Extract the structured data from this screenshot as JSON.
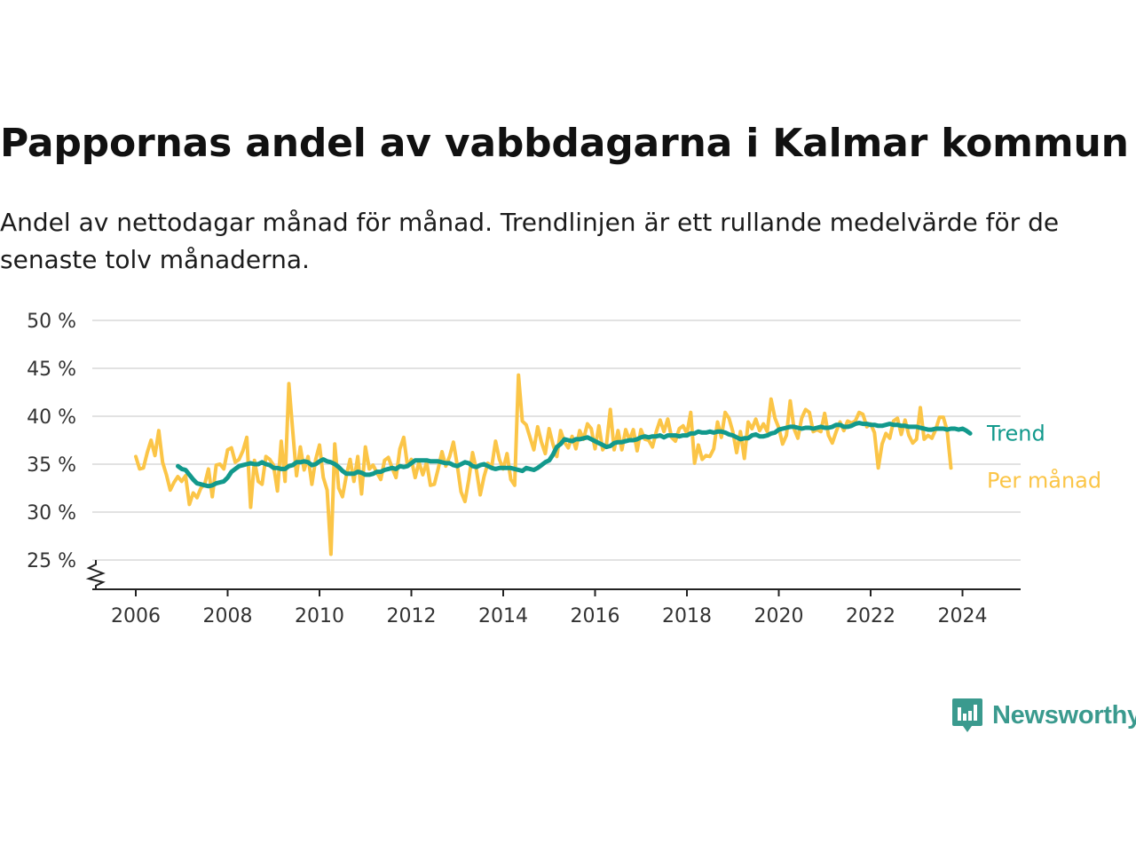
{
  "title": "Pappornas andel av vabbdagarna i Kalmar kommun",
  "subtitle": "Andel av nettodagar månad för månad. Trendlinjen är ett rullande medelvärde för de senaste tolv månaderna.",
  "brand": {
    "name": "Newsworthy",
    "color": "#3a9a8e"
  },
  "colors": {
    "trend": "#12998c",
    "monthly": "#fbc547",
    "grid": "#d9d9d9",
    "axis": "#222222"
  },
  "chart_data": {
    "type": "line",
    "title": "Pappornas andel av vabbdagarna i Kalmar kommun",
    "subtitle": "Andel av nettodagar månad för månad. Trendlinjen är ett rullande medelvärde för de senaste tolv månaderna.",
    "xlabel": "",
    "ylabel": "",
    "xlim": [
      2005.6,
      2025.25
    ],
    "ylim": [
      22,
      50
    ],
    "y_axis_break": true,
    "grid": "horizontal",
    "x_ticks": [
      2006,
      2008,
      2010,
      2012,
      2014,
      2016,
      2018,
      2020,
      2022,
      2024
    ],
    "x_tick_labels": [
      "2006",
      "2008",
      "2010",
      "2012",
      "2014",
      "2016",
      "2018",
      "2020",
      "2022",
      "2024"
    ],
    "y_ticks": [
      25,
      30,
      35,
      40,
      45,
      50
    ],
    "y_tick_labels": [
      "25 %",
      "30 %",
      "35 %",
      "40 %",
      "45 %",
      "50 %"
    ],
    "legend": "inline labels at line ends (right)",
    "series": [
      {
        "name": "Per månad",
        "key": "monthly",
        "x_start": 2006.0,
        "x_step": 0.08333,
        "values": [
          35.8,
          34.5,
          34.6,
          36.2,
          37.5,
          35.9,
          38.5,
          35.2,
          33.9,
          32.3,
          33.1,
          33.7,
          33.2,
          33.8,
          30.8,
          32.0,
          31.5,
          32.5,
          32.9,
          34.5,
          31.6,
          34.9,
          35.0,
          34.5,
          36.5,
          36.7,
          35.2,
          35.5,
          36.4,
          37.8,
          30.5,
          35.4,
          33.2,
          32.9,
          35.8,
          35.5,
          34.9,
          32.2,
          37.4,
          33.2,
          43.4,
          38.5,
          33.8,
          36.8,
          34.4,
          35.8,
          32.9,
          35.5,
          37.0,
          33.6,
          32.3,
          25.6,
          37.1,
          32.5,
          31.6,
          33.8,
          35.5,
          33.2,
          35.8,
          31.9,
          36.8,
          34.5,
          34.9,
          34.1,
          33.4,
          35.4,
          35.7,
          34.6,
          33.6,
          36.6,
          37.8,
          34.8,
          35.5,
          33.6,
          35.2,
          33.9,
          35.2,
          32.8,
          32.9,
          34.5,
          36.3,
          34.8,
          35.8,
          37.3,
          34.9,
          32.1,
          31.1,
          33.4,
          36.2,
          34.4,
          31.8,
          33.7,
          35.1,
          34.7,
          37.4,
          35.5,
          34.5,
          36.1,
          33.4,
          32.8,
          44.3,
          39.5,
          39.1,
          37.8,
          36.5,
          38.9,
          37.3,
          36.1,
          38.7,
          37.1,
          35.8,
          38.5,
          37.3,
          36.7,
          37.9,
          36.6,
          38.5,
          37.6,
          39.2,
          38.7,
          36.6,
          39.0,
          36.5,
          37.1,
          40.7,
          36.5,
          38.5,
          36.5,
          38.6,
          37.5,
          38.6,
          36.4,
          38.6,
          37.6,
          37.5,
          36.8,
          38.4,
          39.6,
          38.4,
          39.7,
          37.8,
          37.4,
          38.7,
          39.0,
          38.2,
          40.4,
          35.1,
          37.0,
          35.5,
          35.9,
          35.8,
          36.6,
          39.4,
          37.8,
          40.4,
          39.8,
          38.4,
          36.2,
          38.4,
          35.6,
          39.4,
          38.7,
          39.7,
          38.5,
          39.2,
          38.4,
          41.8,
          39.8,
          38.8,
          37.1,
          38.0,
          41.6,
          38.7,
          37.7,
          39.8,
          40.7,
          40.4,
          38.4,
          38.6,
          38.4,
          40.3,
          38.0,
          37.2,
          38.4,
          39.4,
          38.5,
          39.5,
          39.3,
          39.5,
          40.4,
          40.2,
          38.9,
          39.2,
          38.3,
          34.6,
          37.1,
          38.2,
          37.7,
          39.5,
          39.8,
          38.1,
          39.6,
          38.0,
          37.2,
          37.6,
          40.9,
          37.6,
          38.0,
          37.7,
          38.6,
          39.9,
          39.9,
          38.5,
          34.6
        ]
      },
      {
        "name": "Trend",
        "key": "trend",
        "x_start": 2006.917,
        "x_step": 0.08333,
        "values": [
          34.8,
          34.5,
          34.4,
          33.9,
          33.4,
          33.0,
          32.9,
          32.8,
          32.7,
          32.8,
          33.0,
          33.1,
          33.2,
          33.6,
          34.2,
          34.5,
          34.8,
          34.9,
          35.0,
          35.1,
          35.0,
          35.0,
          35.2,
          35.0,
          34.9,
          34.6,
          34.6,
          34.5,
          34.5,
          34.8,
          34.9,
          35.2,
          35.2,
          35.3,
          35.2,
          34.9,
          35.0,
          35.3,
          35.5,
          35.3,
          35.2,
          35.0,
          34.7,
          34.3,
          34.0,
          34.0,
          34.0,
          34.2,
          34.1,
          33.9,
          33.9,
          34.0,
          34.2,
          34.2,
          34.4,
          34.5,
          34.6,
          34.5,
          34.8,
          34.7,
          34.8,
          35.1,
          35.4,
          35.4,
          35.4,
          35.4,
          35.3,
          35.3,
          35.3,
          35.2,
          35.1,
          35.1,
          34.9,
          34.8,
          35.0,
          35.2,
          35.1,
          34.8,
          34.7,
          34.9,
          35.0,
          34.8,
          34.6,
          34.5,
          34.6,
          34.6,
          34.6,
          34.6,
          34.5,
          34.4,
          34.3,
          34.6,
          34.5,
          34.4,
          34.6,
          34.9,
          35.2,
          35.4,
          36.0,
          36.8,
          37.1,
          37.6,
          37.5,
          37.4,
          37.6,
          37.6,
          37.7,
          37.8,
          37.6,
          37.4,
          37.2,
          37.0,
          36.8,
          36.9,
          37.2,
          37.3,
          37.3,
          37.4,
          37.5,
          37.5,
          37.6,
          37.8,
          37.9,
          37.8,
          37.9,
          37.9,
          38.0,
          37.8,
          38.0,
          38.0,
          38.0,
          37.9,
          38.0,
          38.0,
          38.2,
          38.2,
          38.4,
          38.3,
          38.3,
          38.4,
          38.3,
          38.4,
          38.4,
          38.3,
          38.1,
          38.0,
          37.8,
          37.6,
          37.7,
          37.7,
          38.0,
          38.1,
          37.9,
          37.9,
          38.0,
          38.2,
          38.3,
          38.6,
          38.7,
          38.8,
          38.9,
          38.9,
          38.8,
          38.7,
          38.8,
          38.8,
          38.7,
          38.8,
          38.9,
          38.8,
          38.8,
          38.9,
          39.1,
          39.1,
          38.9,
          38.9,
          39.0,
          39.2,
          39.3,
          39.2,
          39.2,
          39.1,
          39.1,
          39.0,
          39.0,
          39.1,
          39.2,
          39.1,
          39.1,
          39.0,
          39.0,
          38.9,
          38.9,
          38.9,
          38.8,
          38.7,
          38.6,
          38.6,
          38.7,
          38.7,
          38.7,
          38.6,
          38.7,
          38.7,
          38.6,
          38.7,
          38.5,
          38.2
        ]
      }
    ]
  }
}
